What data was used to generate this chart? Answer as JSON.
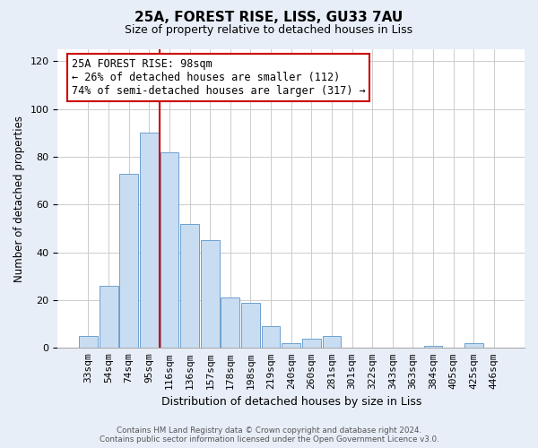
{
  "title": "25A, FOREST RISE, LISS, GU33 7AU",
  "subtitle": "Size of property relative to detached houses in Liss",
  "xlabel": "Distribution of detached houses by size in Liss",
  "ylabel": "Number of detached properties",
  "bar_labels": [
    "33sqm",
    "54sqm",
    "74sqm",
    "95sqm",
    "116sqm",
    "136sqm",
    "157sqm",
    "178sqm",
    "198sqm",
    "219sqm",
    "240sqm",
    "260sqm",
    "281sqm",
    "301sqm",
    "322sqm",
    "343sqm",
    "363sqm",
    "384sqm",
    "405sqm",
    "425sqm",
    "446sqm"
  ],
  "bar_values": [
    5,
    26,
    73,
    90,
    82,
    52,
    45,
    21,
    19,
    9,
    2,
    4,
    5,
    0,
    0,
    0,
    0,
    1,
    0,
    2,
    0
  ],
  "bar_color": "#c9ddf2",
  "bar_edge_color": "#6da0d0",
  "vline_x": 3.5,
  "vline_color": "#cc0000",
  "annotation_text": "25A FOREST RISE: 98sqm\n← 26% of detached houses are smaller (112)\n74% of semi-detached houses are larger (317) →",
  "annotation_box_color": "#ffffff",
  "annotation_box_edge_color": "#cc0000",
  "ylim": [
    0,
    125
  ],
  "yticks": [
    0,
    20,
    40,
    60,
    80,
    100,
    120
  ],
  "plot_bg_color": "#ffffff",
  "fig_bg_color": "#e8eef8",
  "footer_text": "Contains HM Land Registry data © Crown copyright and database right 2024.\nContains public sector information licensed under the Open Government Licence v3.0.",
  "title_fontsize": 11,
  "subtitle_fontsize": 9,
  "ylabel_fontsize": 8.5,
  "xlabel_fontsize": 9,
  "tick_fontsize": 8,
  "annot_fontsize": 8.5
}
